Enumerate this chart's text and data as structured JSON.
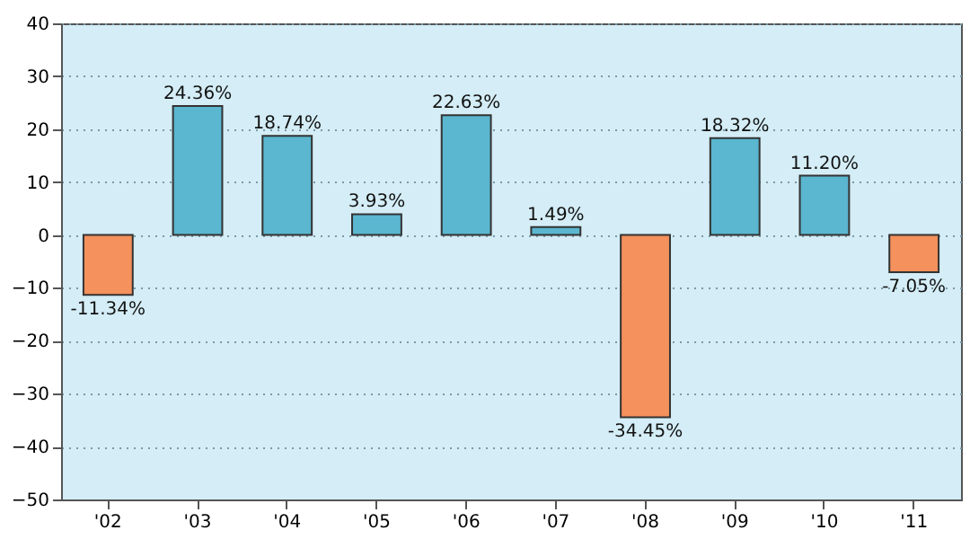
{
  "chart_data": {
    "type": "bar",
    "categories": [
      "'02",
      "'03",
      "'04",
      "'05",
      "'06",
      "'07",
      "'08",
      "'09",
      "'10",
      "'11"
    ],
    "values": [
      -11.34,
      24.36,
      18.74,
      3.93,
      22.63,
      1.49,
      -34.45,
      18.32,
      11.2,
      -7.05
    ],
    "value_labels": [
      "-11.34%",
      "24.36%",
      "18.74%",
      "3.93%",
      "22.63%",
      "1.49%",
      "-34.45%",
      "18.32%",
      "11.20%",
      "-7.05%"
    ],
    "colors": [
      "#f4915c",
      "#5bb6cf",
      "#5bb6cf",
      "#5bb6cf",
      "#5bb6cf",
      "#5bb6cf",
      "#f4915c",
      "#5bb6cf",
      "#5bb6cf",
      "#f4915c"
    ],
    "ylim": [
      -50,
      40
    ],
    "yticks": [
      -50,
      -40,
      -30,
      -20,
      -10,
      0,
      10,
      20,
      30,
      40
    ],
    "grid": "y"
  }
}
